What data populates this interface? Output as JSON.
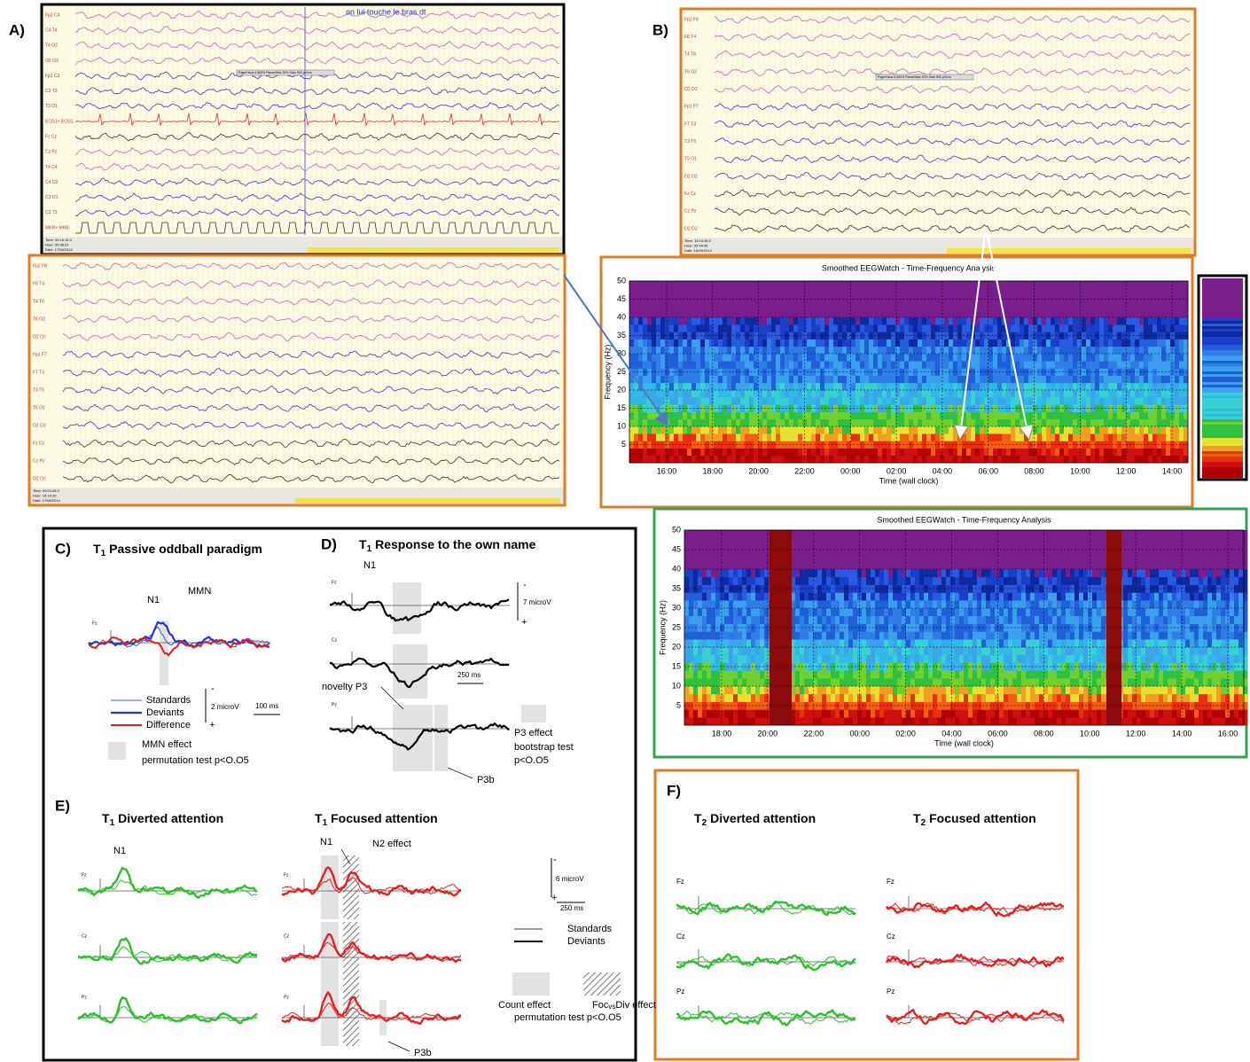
{
  "panel_a": {
    "label": "A)",
    "annotation": "on lui touche le bras dt",
    "scale_note": "Page/Hauz 4.500%  Pause/Max 30%  Gain 500 µV/cm",
    "top_channels": [
      {
        "label": "Fp2 C4",
        "color": "#d65fc8"
      },
      {
        "label": "C4 T4",
        "color": "#d65fc8"
      },
      {
        "label": "T4 O2",
        "color": "#d65fc8"
      },
      {
        "label": "O2 O2",
        "color": "#d65fc8"
      },
      {
        "label": "Fp1 C3",
        "color": "#3a3acd"
      },
      {
        "label": "C3 T3",
        "color": "#3a3acd"
      },
      {
        "label": "T3 O1",
        "color": "#3a3acd"
      },
      {
        "label": "ECG1+ ECG1-",
        "color": "#e03030"
      },
      {
        "label": "Fz Cz",
        "color": "#333333"
      },
      {
        "label": "Cz Pz",
        "color": "#d65fc8"
      },
      {
        "label": "T4 C4",
        "color": "#d65fc8"
      },
      {
        "label": "C4 O2",
        "color": "#3a3acd"
      },
      {
        "label": "C3 O1",
        "color": "#3a3acd"
      },
      {
        "label": "C3 T3",
        "color": "#3a3acd"
      },
      {
        "label": "MKR+ MKR-",
        "color": "#333333"
      }
    ],
    "top_status": [
      "Time: 00:16:15.0",
      "Hour: 09:08:21",
      "Date: 17/06/2014"
    ],
    "bottom_channels": [
      {
        "label": "Fp2 F8",
        "color": "#d65fc8"
      },
      {
        "label": "F8 T4",
        "color": "#d65fc8"
      },
      {
        "label": "T4 T6",
        "color": "#d65fc8"
      },
      {
        "label": "T6 O2",
        "color": "#d65fc8"
      },
      {
        "label": "O2 O2",
        "color": "#d65fc8"
      },
      {
        "label": "Fp1 F7",
        "color": "#3a3acd"
      },
      {
        "label": "F7 T3",
        "color": "#3a3acd"
      },
      {
        "label": "T3 T5",
        "color": "#3a3acd"
      },
      {
        "label": "T5 O1",
        "color": "#3a3acd"
      },
      {
        "label": "O2 O2",
        "color": "#3a3acd"
      },
      {
        "label": "Fz Cz",
        "color": "#333333"
      },
      {
        "label": "Cz Pz",
        "color": "#333333"
      },
      {
        "label": "O2 O2",
        "color": "#333333"
      }
    ],
    "bottom_status": [
      "Time: 00:01:05.0",
      "Hour: 15:19:26",
      "Date: 17/06/2014"
    ]
  },
  "panel_b": {
    "label": "B)",
    "scale_note": "Page/Hauz 4.500%  Pause/Max 10%  Gain 500 µV/cm",
    "channels": [
      {
        "label": "Fp2 F8",
        "color": "#d65fc8"
      },
      {
        "label": "F8 T4",
        "color": "#d65fc8"
      },
      {
        "label": "T4 T6",
        "color": "#d65fc8"
      },
      {
        "label": "T6 O2",
        "color": "#d65fc8"
      },
      {
        "label": "O2 O2",
        "color": "#d65fc8"
      },
      {
        "label": "Fp1 F7",
        "color": "#3a3acd"
      },
      {
        "label": "F7 T3",
        "color": "#3a3acd"
      },
      {
        "label": "T3 T5",
        "color": "#3a3acd"
      },
      {
        "label": "T5 O1",
        "color": "#3a3acd"
      },
      {
        "label": "O2 O2",
        "color": "#3a3acd"
      },
      {
        "label": "Fz Cz",
        "color": "#333333"
      },
      {
        "label": "Cz Pz",
        "color": "#333333"
      },
      {
        "label": "O2 O2",
        "color": "#333333"
      }
    ],
    "status": [
      "Time: 15:15:35.0",
      "Hour: 05:44:46",
      "Date: 18/06/2014"
    ]
  },
  "spectrogram_1": {
    "title": "Smoothed EEGWatch  -  Time-Frequency Analysis",
    "y_label": "Frequency (Hz)",
    "x_label": "Time (wall clock)",
    "yticks": [
      5,
      10,
      15,
      20,
      25,
      30,
      35,
      40,
      45,
      50
    ],
    "xticks": [
      "16:00",
      "18:00",
      "20:00",
      "22:00",
      "00:00",
      "02:00",
      "04:00",
      "06:00",
      "08:00",
      "10:00",
      "12:00",
      "14:00"
    ]
  },
  "spectrogram_2": {
    "title": "Smoothed EEGWatch  -  Time-Frequency Analysis",
    "y_label": "Frequency (Hz)",
    "x_label": "Time (wall clock)",
    "yticks": [
      5,
      10,
      15,
      20,
      25,
      30,
      35,
      40,
      45,
      50
    ],
    "xticks": [
      "18:00",
      "20:00",
      "22:00",
      "00:00",
      "02:00",
      "04:00",
      "06:00",
      "08:00",
      "10:00",
      "12:00",
      "14:00",
      "16:00"
    ]
  },
  "panel_c": {
    "label": "C)",
    "title": {
      "prefix": "T",
      "sub": "1",
      "text": "Passive oddball paradigm"
    },
    "channel": "Fz",
    "peaks": [
      "N1",
      "MMN"
    ],
    "legend": [
      "Standards",
      "Deviants",
      "Difference"
    ],
    "scale": [
      "-",
      "2 microV",
      "+"
    ],
    "time_scale": "100 ms",
    "effect": [
      "MMN effect",
      "permutation test p<O.O5"
    ]
  },
  "panel_d": {
    "label": "D)",
    "title": {
      "prefix": "T",
      "sub": "1",
      "text": "Response to the own name"
    },
    "channels": [
      "Fz",
      "Cz",
      "Pz"
    ],
    "peak": "N1",
    "scale": [
      "-",
      "7 microV",
      "+"
    ],
    "novelty": "novelty P3",
    "time_scale": "250 ms",
    "effect": [
      "P3 effect",
      "bootstrap test",
      "p<O.O5"
    ],
    "p3b": "P3b"
  },
  "panel_e": {
    "label": "E)",
    "diverted": {
      "prefix": "T",
      "sub": "1",
      "text": "Diverted attention"
    },
    "focused": {
      "prefix": "T",
      "sub": "1",
      "text": "Focused attention"
    },
    "channels": [
      "Fz",
      "Cz",
      "Pz"
    ],
    "peak_diverted": "N1",
    "peak_focused": "N1",
    "n2": "N2 effect",
    "scale": [
      "-",
      "6 microV",
      "+"
    ],
    "time_scale": "250 ms",
    "legend": [
      "Standards",
      "Deviants"
    ],
    "count_effect": "Count effect",
    "focdiv": {
      "a": "Foc",
      "b": "vs",
      "c": "Div effect"
    },
    "test": "permutation test p<O.O5",
    "p3b": "P3b"
  },
  "panel_f": {
    "label": "F)",
    "diverted": {
      "prefix": "T",
      "sub": "2",
      "text": "Diverted attention"
    },
    "focused": {
      "prefix": "T",
      "sub": "2",
      "text": "Focused attention"
    },
    "channels": [
      "Fz",
      "Cz",
      "Pz"
    ]
  }
}
